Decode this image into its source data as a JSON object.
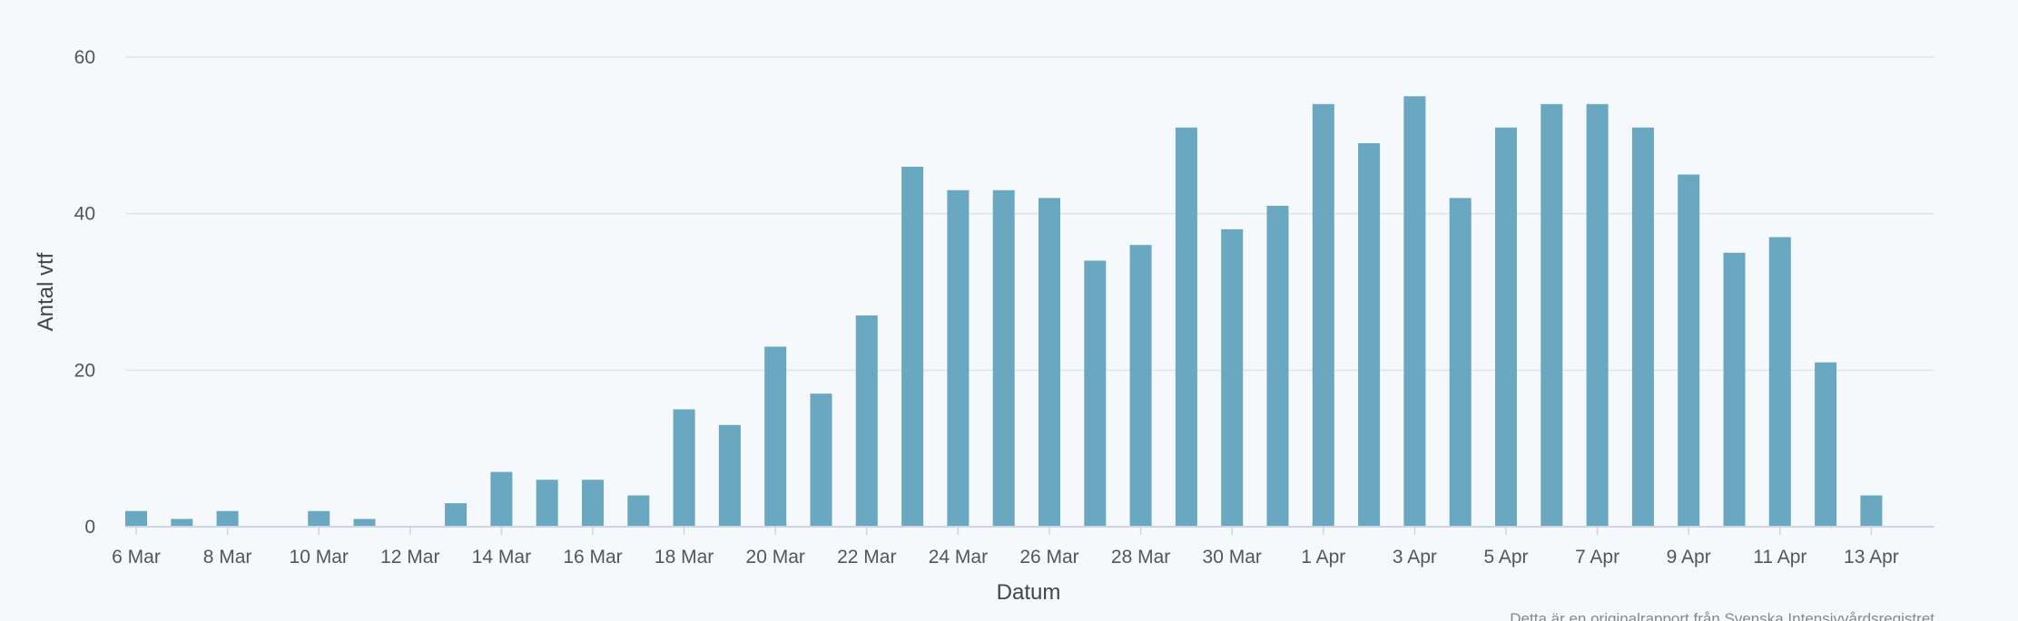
{
  "chart_data": {
    "type": "bar",
    "xlabel": "Datum",
    "ylabel": "Antal vtf",
    "ylim": [
      0,
      60
    ],
    "y_ticks": [
      0,
      20,
      40,
      60
    ],
    "grid": true,
    "bar_color": "#6aa7c1",
    "background": "#f5f9fb",
    "categories": [
      "6 Mar",
      "7 Mar",
      "8 Mar",
      "9 Mar",
      "10 Mar",
      "11 Mar",
      "12 Mar",
      "13 Mar",
      "14 Mar",
      "15 Mar",
      "16 Mar",
      "17 Mar",
      "18 Mar",
      "19 Mar",
      "20 Mar",
      "21 Mar",
      "22 Mar",
      "23 Mar",
      "24 Mar",
      "25 Mar",
      "26 Mar",
      "27 Mar",
      "28 Mar",
      "29 Mar",
      "30 Mar",
      "31 Mar",
      "1 Apr",
      "2 Apr",
      "3 Apr",
      "4 Apr",
      "5 Apr",
      "6 Apr",
      "7 Apr",
      "8 Apr",
      "9 Apr",
      "10 Apr",
      "11 Apr",
      "12 Apr",
      "13 Apr"
    ],
    "values": [
      2,
      1,
      2,
      0,
      2,
      1,
      0,
      3,
      7,
      6,
      6,
      4,
      15,
      13,
      23,
      17,
      27,
      46,
      43,
      43,
      42,
      34,
      36,
      51,
      38,
      41,
      54,
      49,
      55,
      42,
      51,
      54,
      54,
      51,
      45,
      35,
      37,
      21,
      4
    ],
    "x_tick_labels": [
      "6 Mar",
      "8 Mar",
      "10 Mar",
      "12 Mar",
      "14 Mar",
      "16 Mar",
      "18 Mar",
      "20 Mar",
      "22 Mar",
      "24 Mar",
      "26 Mar",
      "28 Mar",
      "30 Mar",
      "1 Apr",
      "3 Apr",
      "5 Apr",
      "7 Apr",
      "9 Apr",
      "11 Apr",
      "13 Apr"
    ],
    "credit": "Detta är en originalrapport från Svenska Intensivvårdsregistret"
  }
}
